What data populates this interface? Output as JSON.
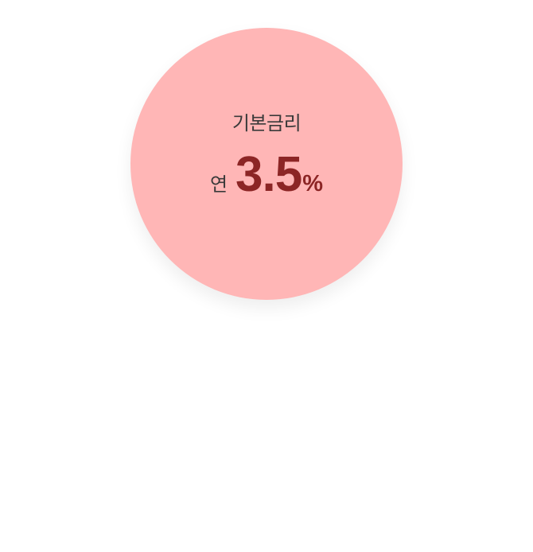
{
  "rate_card": {
    "title": "기본금리",
    "prefix": "연",
    "value": "3.5",
    "unit": "%",
    "circle_color": "#ffb6b6",
    "accent_color": "#8c2525"
  }
}
